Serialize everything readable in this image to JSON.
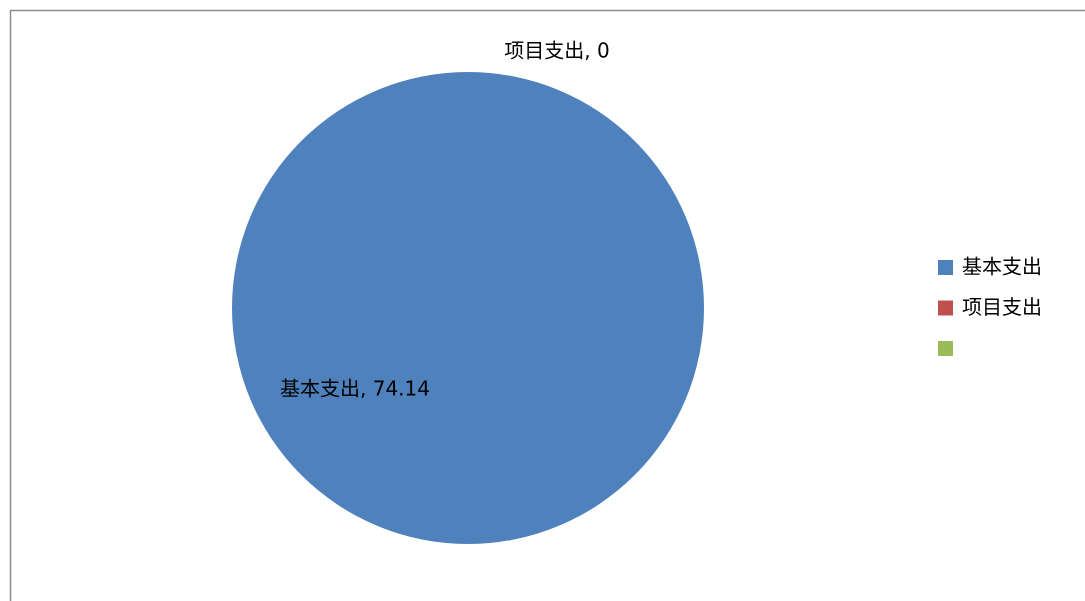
{
  "chart_data": {
    "type": "pie",
    "categories": [
      "基本支出",
      "项目支出",
      null
    ],
    "values": [
      74.14,
      0,
      null
    ],
    "value_labels": [
      "基本支出, 74.14",
      "项目支出, 0",
      null
    ],
    "colors": [
      "#4f81bd",
      "#c0504d",
      "#9bbb59"
    ],
    "legend": "right"
  }
}
